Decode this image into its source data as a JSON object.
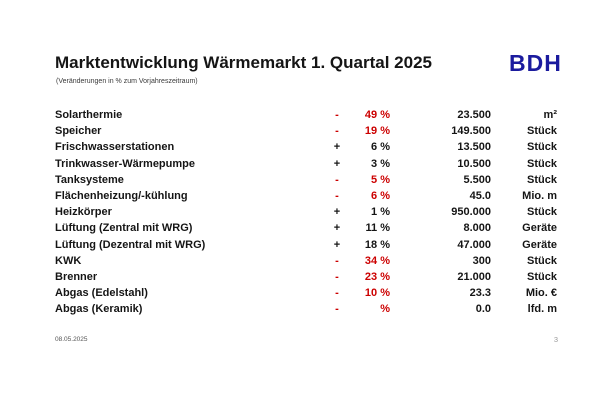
{
  "slide": {
    "title": "Marktentwicklung Wärmemarkt 1. Quartal 2025",
    "subtitle": "(Veränderungen in % zum Vorjahreszeitraum)",
    "logo_text": "BDH",
    "footer_date": "08.05.2025",
    "page_number": "3"
  },
  "colors": {
    "negative_red": "#cc0000",
    "text_black": "#151515",
    "logo_blue": "#1b1b9e"
  },
  "chart_data": {
    "type": "table",
    "title": "Marktentwicklung Wärmemarkt 1. Quartal 2025",
    "subtitle": "(Veränderungen in % zum Vorjahreszeitraum)",
    "rows": [
      {
        "label": "Solarthermie",
        "sign": "-",
        "pct": "49 %",
        "value": "23.500",
        "unit": "m²",
        "negative": true
      },
      {
        "label": "Speicher",
        "sign": "-",
        "pct": "19 %",
        "value": "149.500",
        "unit": "Stück",
        "negative": true
      },
      {
        "label": "Frischwasserstationen",
        "sign": "+",
        "pct": "6 %",
        "value": "13.500",
        "unit": "Stück",
        "negative": false
      },
      {
        "label": "Trinkwasser-Wärmepumpe",
        "sign": "+",
        "pct": "3 %",
        "value": "10.500",
        "unit": "Stück",
        "negative": false
      },
      {
        "label": "Tanksysteme",
        "sign": "-",
        "pct": "5 %",
        "value": "5.500",
        "unit": "Stück",
        "negative": true
      },
      {
        "label": "Flächenheizung/-kühlung",
        "sign": "-",
        "pct": "6 %",
        "value": "45.0",
        "unit": "Mio. m",
        "negative": true
      },
      {
        "label": "Heizkörper",
        "sign": "+",
        "pct": "1 %",
        "value": "950.000",
        "unit": "Stück",
        "negative": false
      },
      {
        "label": "Lüftung (Zentral mit WRG)",
        "sign": "+",
        "pct": "11 %",
        "value": "8.000",
        "unit": "Geräte",
        "negative": false
      },
      {
        "label": "Lüftung (Dezentral mit WRG)",
        "sign": "+",
        "pct": "18 %",
        "value": "47.000",
        "unit": "Geräte",
        "negative": false
      },
      {
        "label": "KWK",
        "sign": "-",
        "pct": "34 %",
        "value": "300",
        "unit": "Stück",
        "negative": true
      },
      {
        "label": "Brenner",
        "sign": "-",
        "pct": "23 %",
        "value": "21.000",
        "unit": "Stück",
        "negative": true
      },
      {
        "label": "Abgas (Edelstahl)",
        "sign": "-",
        "pct": "10 %",
        "value": "23.3",
        "unit": "Mio. €",
        "negative": true
      },
      {
        "label": "Abgas (Keramik)",
        "sign": "-",
        "pct": "%",
        "value": "0.0",
        "unit": "lfd. m",
        "negative": true
      }
    ]
  }
}
